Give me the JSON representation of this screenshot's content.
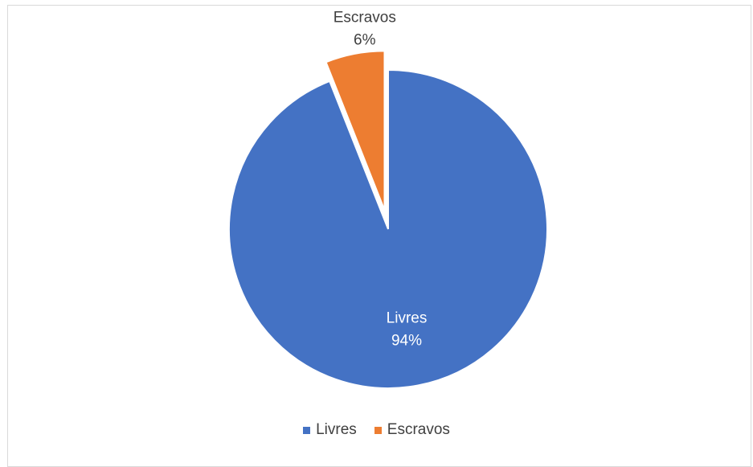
{
  "chart_data": {
    "type": "pie",
    "title": "",
    "slices": [
      {
        "label": "Livres",
        "value": 94,
        "display": "94%",
        "color": "#4472c4",
        "exploded": false
      },
      {
        "label": "Escravos",
        "value": 6,
        "display": "6%",
        "color": "#ed7d31",
        "exploded": true
      }
    ],
    "legend_position": "bottom",
    "label_color_inside": "#ffffff",
    "label_color_outside": "#404040"
  }
}
